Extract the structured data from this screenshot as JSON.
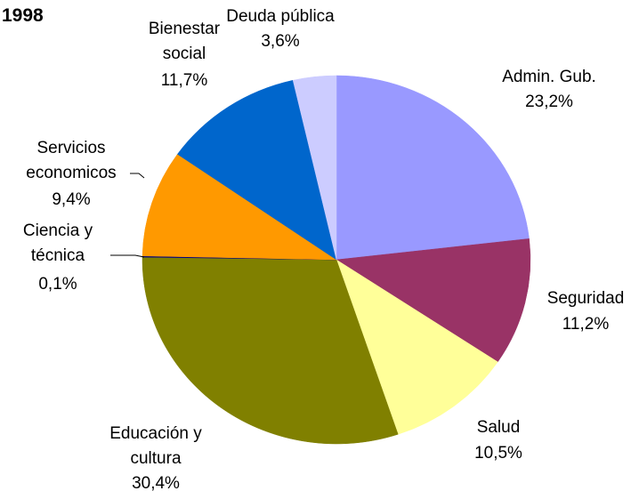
{
  "chart_data": {
    "type": "pie",
    "title": "1998",
    "categories": [
      "Admin. Gub.",
      "Seguridad",
      "Salud",
      "Educación y\ncultura",
      "Ciencia y\ntécnica",
      "Servicios\neconomicos",
      "Bienestar\nsocial",
      "Deuda pública"
    ],
    "values": [
      23.2,
      11.2,
      10.5,
      30.4,
      0.1,
      9.4,
      11.7,
      3.6
    ],
    "value_labels": [
      "23,2%",
      "11,2%",
      "10,5%",
      "30,4%",
      "0,1%",
      "9,4%",
      "11,7%",
      "3,6%"
    ],
    "colors": [
      "#9999ff",
      "#993366",
      "#ffff99",
      "#808000",
      "#000080",
      "#ff9900",
      "#0066cc",
      "#ccccff"
    ]
  }
}
